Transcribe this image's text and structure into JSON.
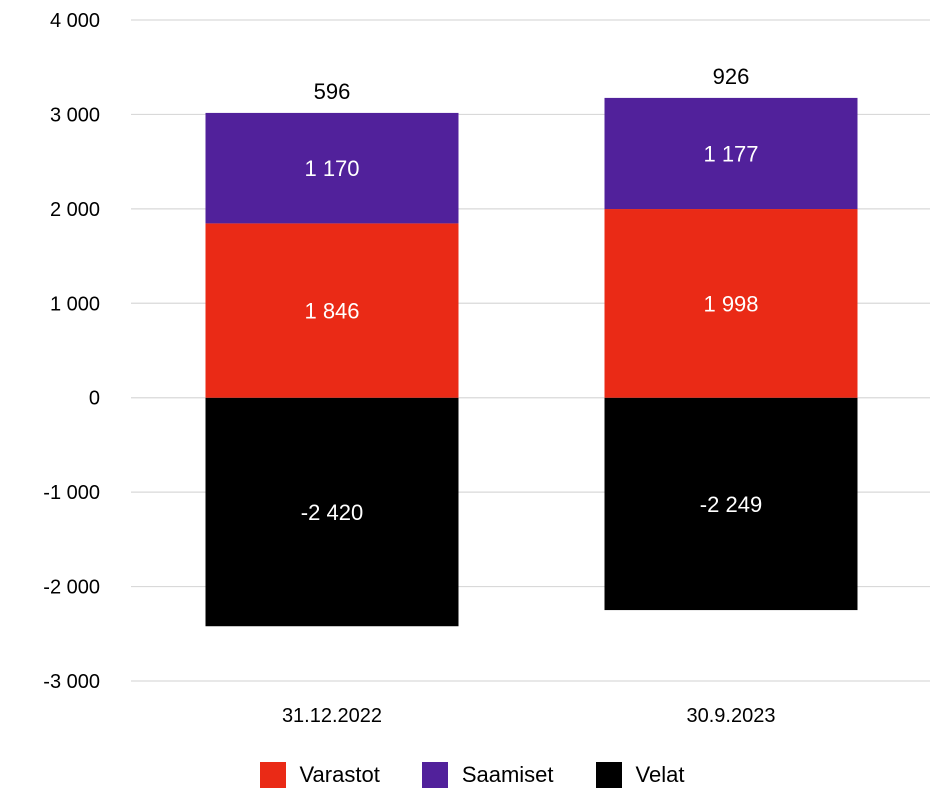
{
  "chart_data": {
    "type": "bar",
    "stacked": true,
    "categories": [
      "31.12.2022",
      "30.9.2023"
    ],
    "series": [
      {
        "name": "Velat",
        "color": "#000000",
        "label_color": "#ffffff",
        "values": [
          -2420,
          -2249
        ],
        "labels": [
          "-2 420",
          "-2 249"
        ]
      },
      {
        "name": "Varastot",
        "color": "#ea2a16",
        "label_color": "#ffffff",
        "values": [
          1846,
          1998
        ],
        "labels": [
          "1 846",
          "1 998"
        ]
      },
      {
        "name": "Saamiset",
        "color": "#51219b",
        "label_color": "#ffffff",
        "values": [
          1170,
          1177
        ],
        "labels": [
          "1 170",
          "1 177"
        ]
      }
    ],
    "totals": [
      596,
      926
    ],
    "total_labels": [
      "596",
      "926"
    ],
    "y_ticks": [
      4000,
      3000,
      2000,
      1000,
      0,
      -1000,
      -2000,
      -3000
    ],
    "y_tick_labels": [
      "4 000",
      "3 000",
      "2 000",
      "1 000",
      "0",
      "-1 000",
      "-2 000",
      "-3 000"
    ],
    "ylim": [
      -3000,
      4000
    ],
    "grid": true,
    "legend_position": "bottom",
    "legend": [
      {
        "name": "Varastot",
        "color": "#ea2a16"
      },
      {
        "name": "Saamiset",
        "color": "#51219b"
      },
      {
        "name": "Velat",
        "color": "#000000"
      }
    ]
  }
}
